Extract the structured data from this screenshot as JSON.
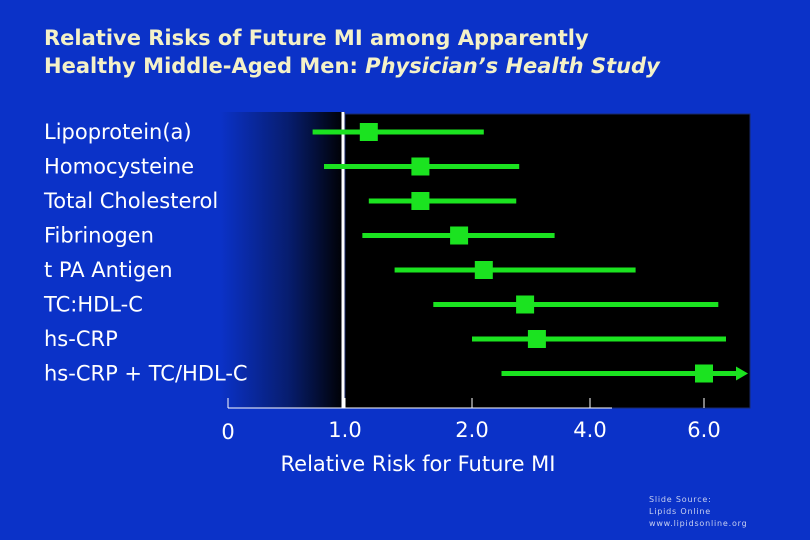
{
  "title": {
    "line1": "Relative Risks of Future MI among Apparently",
    "line2_plain": "Healthy Middle-Aged Men: ",
    "line2_italic": "Physician’s Health Study"
  },
  "chart_data": {
    "type": "forest",
    "title": "Relative Risks of Future MI among Apparently Healthy Middle-Aged Men: Physician’s Health Study",
    "xlabel": "Relative Risk for Future MI",
    "x_ticks": [
      "0",
      "1.0",
      "2.0",
      "4.0",
      "6.0"
    ],
    "x_scale": "log",
    "reference_line": 1.0,
    "rows": [
      {
        "label": "Lipoprotein(a)",
        "rr": 1.2,
        "ci_low": 0.92,
        "ci_high": 2.2,
        "arrow": false
      },
      {
        "label": "Homocysteine",
        "rr": 1.6,
        "ci_low": 0.95,
        "ci_high": 2.8,
        "arrow": false
      },
      {
        "label": "Total Cholesterol",
        "rr": 1.6,
        "ci_low": 1.2,
        "ci_high": 2.75,
        "arrow": false
      },
      {
        "label": "Fibrinogen",
        "rr": 1.9,
        "ci_low": 1.15,
        "ci_high": 3.4,
        "arrow": false
      },
      {
        "label": "t PA Antigen",
        "rr": 2.2,
        "ci_low": 1.4,
        "ci_high": 4.8,
        "arrow": false
      },
      {
        "label": "TC:HDL-C",
        "rr": 2.9,
        "ci_low": 1.7,
        "ci_high": 7.3,
        "arrow": false
      },
      {
        "label": "hs-CRP",
        "rr": 3.1,
        "ci_low": 2.0,
        "ci_high": 8.0,
        "arrow": false
      },
      {
        "label": "hs-CRP + TC/HDL-C",
        "rr": 6.0,
        "ci_low": 2.5,
        "ci_high": 10.0,
        "arrow": true
      }
    ],
    "colors": {
      "marker": "#1be320",
      "panel": "#000000",
      "background": "#0b32c8"
    }
  },
  "source": {
    "line1": "Slide Source:",
    "line2": "Lipids Online",
    "line3": "www.lipidsonline.org"
  }
}
